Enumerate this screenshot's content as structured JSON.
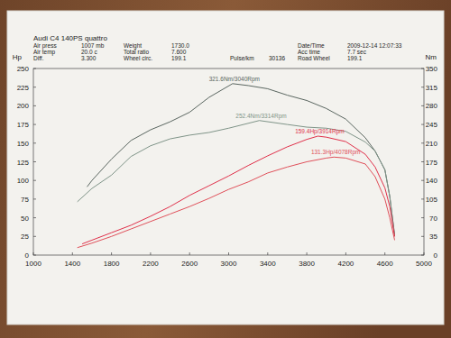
{
  "chart_data": {
    "type": "line",
    "title": "Audi C4 140PS quattro",
    "info": [
      [
        {
          "label": "Air press",
          "value": "1007 mb"
        },
        {
          "label": "Weight",
          "value": "1730.0"
        },
        null,
        {
          "label": "Date/Time",
          "value": "2009-12-14 12:07:33"
        }
      ],
      [
        {
          "label": "Air temp",
          "value": "20.0 c"
        },
        {
          "label": "Total ratio",
          "value": "7.600"
        },
        null,
        {
          "label": "Acc time",
          "value": "7.7 sec"
        }
      ],
      [
        {
          "label": "Diff.",
          "value": "3.300"
        },
        {
          "label": "Wheel circ.",
          "value": "199.1"
        },
        {
          "label": "Pulse/km",
          "value": "30136"
        },
        {
          "label": "Road Wheel",
          "value": "199.1"
        }
      ]
    ],
    "y_label": "Hp",
    "y2_label": "Nm",
    "xlim": [
      1000,
      5000
    ],
    "xticks": [
      1000,
      1400,
      1800,
      2200,
      2600,
      3000,
      3400,
      3800,
      4200,
      4600,
      5000
    ],
    "ylim": [
      0,
      250
    ],
    "yticks": [
      0,
      25,
      50,
      75,
      100,
      125,
      150,
      175,
      200,
      225,
      250
    ],
    "y2lim": [
      0,
      350
    ],
    "y2ticks": [
      0,
      35,
      70,
      105,
      140,
      175,
      210,
      245,
      280,
      315,
      350
    ],
    "grid": false,
    "series": [
      {
        "name": "321.6Nm/3040Rpm",
        "color": "#5a6660",
        "axis": "y2",
        "x": [
          1550,
          1600,
          1800,
          2000,
          2200,
          2400,
          2600,
          2800,
          3040,
          3200,
          3400,
          3600,
          3800,
          4000,
          4200,
          4400,
          4500,
          4600,
          4650,
          4700
        ],
        "values": [
          128,
          140,
          180,
          215,
          235,
          250,
          268,
          296,
          321.6,
          318,
          312,
          300,
          290,
          275,
          255,
          220,
          195,
          160,
          110,
          38
        ]
      },
      {
        "name": "252.4Nm/3314Rpm",
        "color": "#7f9488",
        "axis": "y2",
        "x": [
          1450,
          1600,
          1800,
          2000,
          2200,
          2400,
          2600,
          2800,
          3000,
          3314,
          3600,
          3800,
          4000,
          4200,
          4400,
          4500,
          4600,
          4650,
          4700
        ],
        "values": [
          100,
          125,
          150,
          185,
          205,
          218,
          225,
          230,
          238,
          252.4,
          245,
          240,
          238,
          232,
          212,
          195,
          160,
          110,
          35
        ]
      },
      {
        "name": "159.4Hp/3914Rpm",
        "color": "#e0304a",
        "x": [
          1500,
          1600,
          1800,
          2000,
          2200,
          2400,
          2600,
          2800,
          3000,
          3200,
          3400,
          3600,
          3800,
          3914,
          4000,
          4200,
          4400,
          4500,
          4600,
          4650,
          4700
        ],
        "values": [
          15,
          20,
          30,
          40,
          52,
          65,
          80,
          93,
          106,
          120,
          133,
          145,
          155,
          159.4,
          158,
          152,
          135,
          118,
          90,
          65,
          25
        ]
      },
      {
        "name": "131.3Hp/4078Rpm",
        "color": "#e0505a",
        "x": [
          1450,
          1600,
          1800,
          2000,
          2200,
          2400,
          2600,
          2800,
          3000,
          3200,
          3400,
          3600,
          3800,
          4000,
          4078,
          4200,
          4400,
          4500,
          4600,
          4650,
          4700
        ],
        "values": [
          10,
          16,
          25,
          35,
          45,
          55,
          65,
          76,
          88,
          98,
          110,
          118,
          125,
          130,
          131.3,
          130,
          122,
          105,
          75,
          50,
          20
        ]
      }
    ]
  }
}
